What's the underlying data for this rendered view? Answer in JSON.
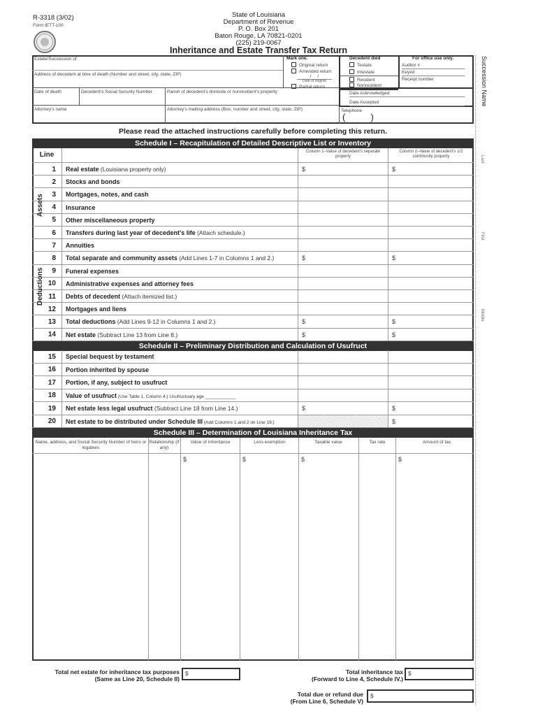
{
  "header": {
    "form_number": "R-3318 (3/02)",
    "form_id": "Form IETT-100",
    "seal": "State of Louisiana seal",
    "agency_lines": [
      "State of Louisiana",
      "Department of Revenue",
      "P. O. Box 201",
      "Baton Rouge,  LA  70821-0201",
      "(225) 219-0067"
    ],
    "title": "Inheritance and Estate Transfer Tax Return"
  },
  "top_box": {
    "estate_label": "Estate/Succession of",
    "address_label": "Address of decedent at time of death (Number and street, city, state, ZIP)",
    "date_of_death_label": "Date of death",
    "ssn_label": "Decedent's Social Security Number",
    "parish_label": "Parish of decedent's domicile or nonresident's property",
    "attorney_label": "Attorney's name",
    "attorney_address_label": "Attorney's mailing address (Box, number and street, city, state, ZIP)",
    "telephone_label": "Telephone",
    "telephone_parens": "(          )",
    "mark_one": {
      "title": "Mark one.",
      "original": "Original return",
      "amended": "Amended return",
      "date_slashes": "/     /",
      "date_of_original": "Date of original",
      "partial": "Partial return"
    },
    "decedent_died": {
      "title": "Decedent died",
      "testate": "Testate",
      "intestate": "Intestate",
      "resident": "Resident",
      "nonresident": "Nonresident"
    },
    "office_use": {
      "title": "For office use only.",
      "auditor": "Auditor #",
      "keyed": "Keyed",
      "receipt": "Receipt number",
      "date_ack": "Date Acknowledged",
      "date_acc": "Date Accepted"
    }
  },
  "side_strip": {
    "title": "Succession Name",
    "last": "Last",
    "first": "First",
    "middle": "Middle"
  },
  "instructions": "Please read the attached instructions carefully before completing this return.",
  "schedule1": {
    "title": "Schedule I – Recapitulation of Detailed Descriptive List or Inventory",
    "line_header": "Line",
    "col1_header": "Column 1–Value of decedent's separate property",
    "col2_header": "Column 2–Value of decedent's 1/2 community property",
    "assets_label": "Assets",
    "deductions_label": "Deductions",
    "rows": [
      {
        "num": "1",
        "bold": "Real estate",
        "note": " (Louisiana property only)",
        "c1": "$",
        "c2": "$"
      },
      {
        "num": "2",
        "bold": "Stocks and bonds",
        "note": "",
        "c1": "",
        "c2": ""
      },
      {
        "num": "3",
        "bold": "Mortgages, notes, and cash",
        "note": "",
        "c1": "",
        "c2": ""
      },
      {
        "num": "4",
        "bold": "Insurance",
        "note": "",
        "c1": "",
        "c2": ""
      },
      {
        "num": "5",
        "bold": "Other miscellaneous property",
        "note": "",
        "c1": "",
        "c2": ""
      },
      {
        "num": "6",
        "bold": "Transfers during last year of decedent's life",
        "note": " (Attach schedule.)",
        "c1": "",
        "c2": ""
      },
      {
        "num": "7",
        "bold": "Annuities",
        "note": "",
        "c1": "",
        "c2": ""
      },
      {
        "num": "8",
        "bold": "Total separate and community assets",
        "note": " (Add Lines 1-7 in Columns 1 and 2.)",
        "c1": "$",
        "c2": "$"
      },
      {
        "num": "9",
        "bold": "Funeral expenses",
        "note": "",
        "c1": "",
        "c2": ""
      },
      {
        "num": "10",
        "bold": "Administrative expenses and attorney fees",
        "note": "",
        "c1": "",
        "c2": ""
      },
      {
        "num": "11",
        "bold": "Debts of decedent",
        "note": " (Attach itemized list.)",
        "c1": "",
        "c2": ""
      },
      {
        "num": "12",
        "bold": "Mortgages and liens",
        "note": "",
        "c1": "",
        "c2": ""
      },
      {
        "num": "13",
        "bold": "Total deductions",
        "note": " (Add Lines 9-12 in Columns 1 and 2.)",
        "c1": "$",
        "c2": "$"
      },
      {
        "num": "14",
        "bold": "Net estate",
        "note": " (Subtract Line 13 from Line 8.)",
        "c1": "$",
        "c2": "$"
      }
    ]
  },
  "schedule2": {
    "title": "Schedule II – Preliminary Distribution and Calculation of Usufruct",
    "rows": [
      {
        "num": "15",
        "bold": "Special bequest by testament",
        "note": "",
        "c1": "",
        "c2": ""
      },
      {
        "num": "16",
        "bold": "Portion inherited by spouse",
        "note": "",
        "c1": "",
        "c2": ""
      },
      {
        "num": "17",
        "bold": "Portion, if any, subject to usufruct",
        "note": "",
        "c1": "",
        "c2": ""
      },
      {
        "num": "18",
        "bold": "Value of usufruct",
        "note": " (Use Table 1, Column 4.) Usufructuary age ____________",
        "c1": "",
        "c2": ""
      },
      {
        "num": "19",
        "bold": "Net estate less legal usufruct",
        "note": " (Subtract Line 18 from Line 14.)",
        "c1": "$",
        "c2": "$"
      },
      {
        "num": "20",
        "bold": "Net estate to be distributed under Schedule III",
        "note": " (Add Columns 1 and 2 on Line 19.)",
        "c1": "",
        "c2": "$",
        "shaded": true
      }
    ]
  },
  "schedule3": {
    "title": "Schedule III – Determination of Louisiana Inheritance Tax",
    "columns": [
      "Name, address, and Social Security Number of heirs or legatees",
      "Relationship (if any)",
      "Value of inheritance",
      "Less exemption",
      "Taxable value",
      "Tax rate",
      "Amount of tax"
    ],
    "dollar": "$"
  },
  "totals": {
    "net_estate_label": "Total net estate for inheritance tax purposes",
    "net_estate_sub": "(Same as Line 20, Schedule II)",
    "inheritance_tax_label": "Total inheritance tax",
    "inheritance_tax_sub": "(Forward to Line 4, Schedule IV.)",
    "due_label": "Total due or refund due",
    "due_sub": "(From Line 6, Schedule V)",
    "dollar": "$"
  }
}
